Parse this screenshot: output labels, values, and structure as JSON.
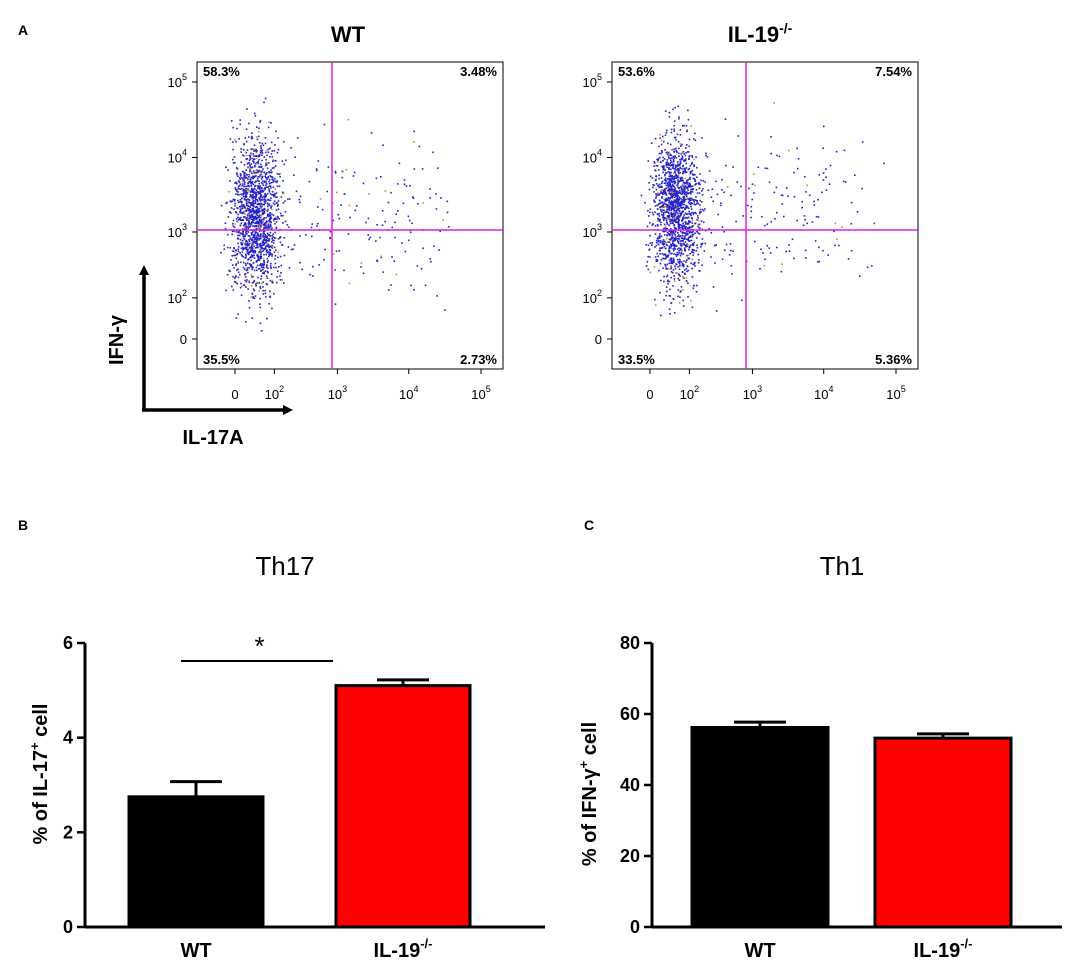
{
  "figure": {
    "panels": [
      {
        "letter": "A"
      },
      {
        "letter": "B"
      },
      {
        "letter": "C"
      }
    ]
  },
  "colors": {
    "gate": "#e020e0",
    "dot": "#2323cc",
    "dot_alt": "#d4882a",
    "wt_bar": "#000000",
    "ko_bar": "#ff0000"
  },
  "chart_data": [
    {
      "type": "scatter",
      "title": "WT",
      "xlabel": "IL-17A",
      "ylabel": "IFN-γ",
      "x_ticks": [
        "0",
        "10",
        "10",
        "10",
        "10"
      ],
      "x_tick_exp": [
        "",
        "2",
        "3",
        "4",
        "5"
      ],
      "y_ticks": [
        "0",
        "10",
        "10",
        "10",
        "10"
      ],
      "y_tick_exp": [
        "",
        "2",
        "3",
        "4",
        "5"
      ],
      "gate": {
        "x": 1000,
        "y": 1000
      },
      "quadrants": {
        "upper_left": "58.3%",
        "upper_right": "3.48%",
        "lower_left": "35.5%",
        "lower_right": "2.73%"
      }
    },
    {
      "type": "scatter",
      "title": "IL-19",
      "title_sup": "-/-",
      "x_ticks": [
        "0",
        "10",
        "10",
        "10",
        "10"
      ],
      "x_tick_exp": [
        "",
        "2",
        "3",
        "4",
        "5"
      ],
      "y_ticks": [
        "0",
        "10",
        "10",
        "10",
        "10"
      ],
      "y_tick_exp": [
        "",
        "2",
        "3",
        "4",
        "5"
      ],
      "gate": {
        "x": 1000,
        "y": 1000
      },
      "quadrants": {
        "upper_left": "53.6%",
        "upper_right": "7.54%",
        "lower_left": "33.5%",
        "lower_right": "5.36%"
      }
    },
    {
      "type": "bar",
      "title": "Th17",
      "ylabel_pre": "% of IL-17",
      "ylabel_sup": "+",
      "ylabel_post": " cell",
      "categories": [
        "WT",
        "IL-19"
      ],
      "category_sups": [
        "",
        "-/-"
      ],
      "values": [
        2.75,
        5.1
      ],
      "errors": [
        0.32,
        0.12
      ],
      "ylim": [
        0,
        6
      ],
      "yticks": [
        0,
        2,
        4,
        6
      ],
      "significance": "*"
    },
    {
      "type": "bar",
      "title": "Th1",
      "ylabel_pre": "% of IFN-γ",
      "ylabel_sup": "+",
      "ylabel_post": " cell",
      "categories": [
        "WT",
        "IL-19"
      ],
      "category_sups": [
        "",
        "-/-"
      ],
      "values": [
        56.2,
        53.2
      ],
      "errors": [
        1.5,
        1.2
      ],
      "ylim": [
        0,
        80
      ],
      "yticks": [
        0,
        20,
        40,
        60,
        80
      ]
    }
  ]
}
